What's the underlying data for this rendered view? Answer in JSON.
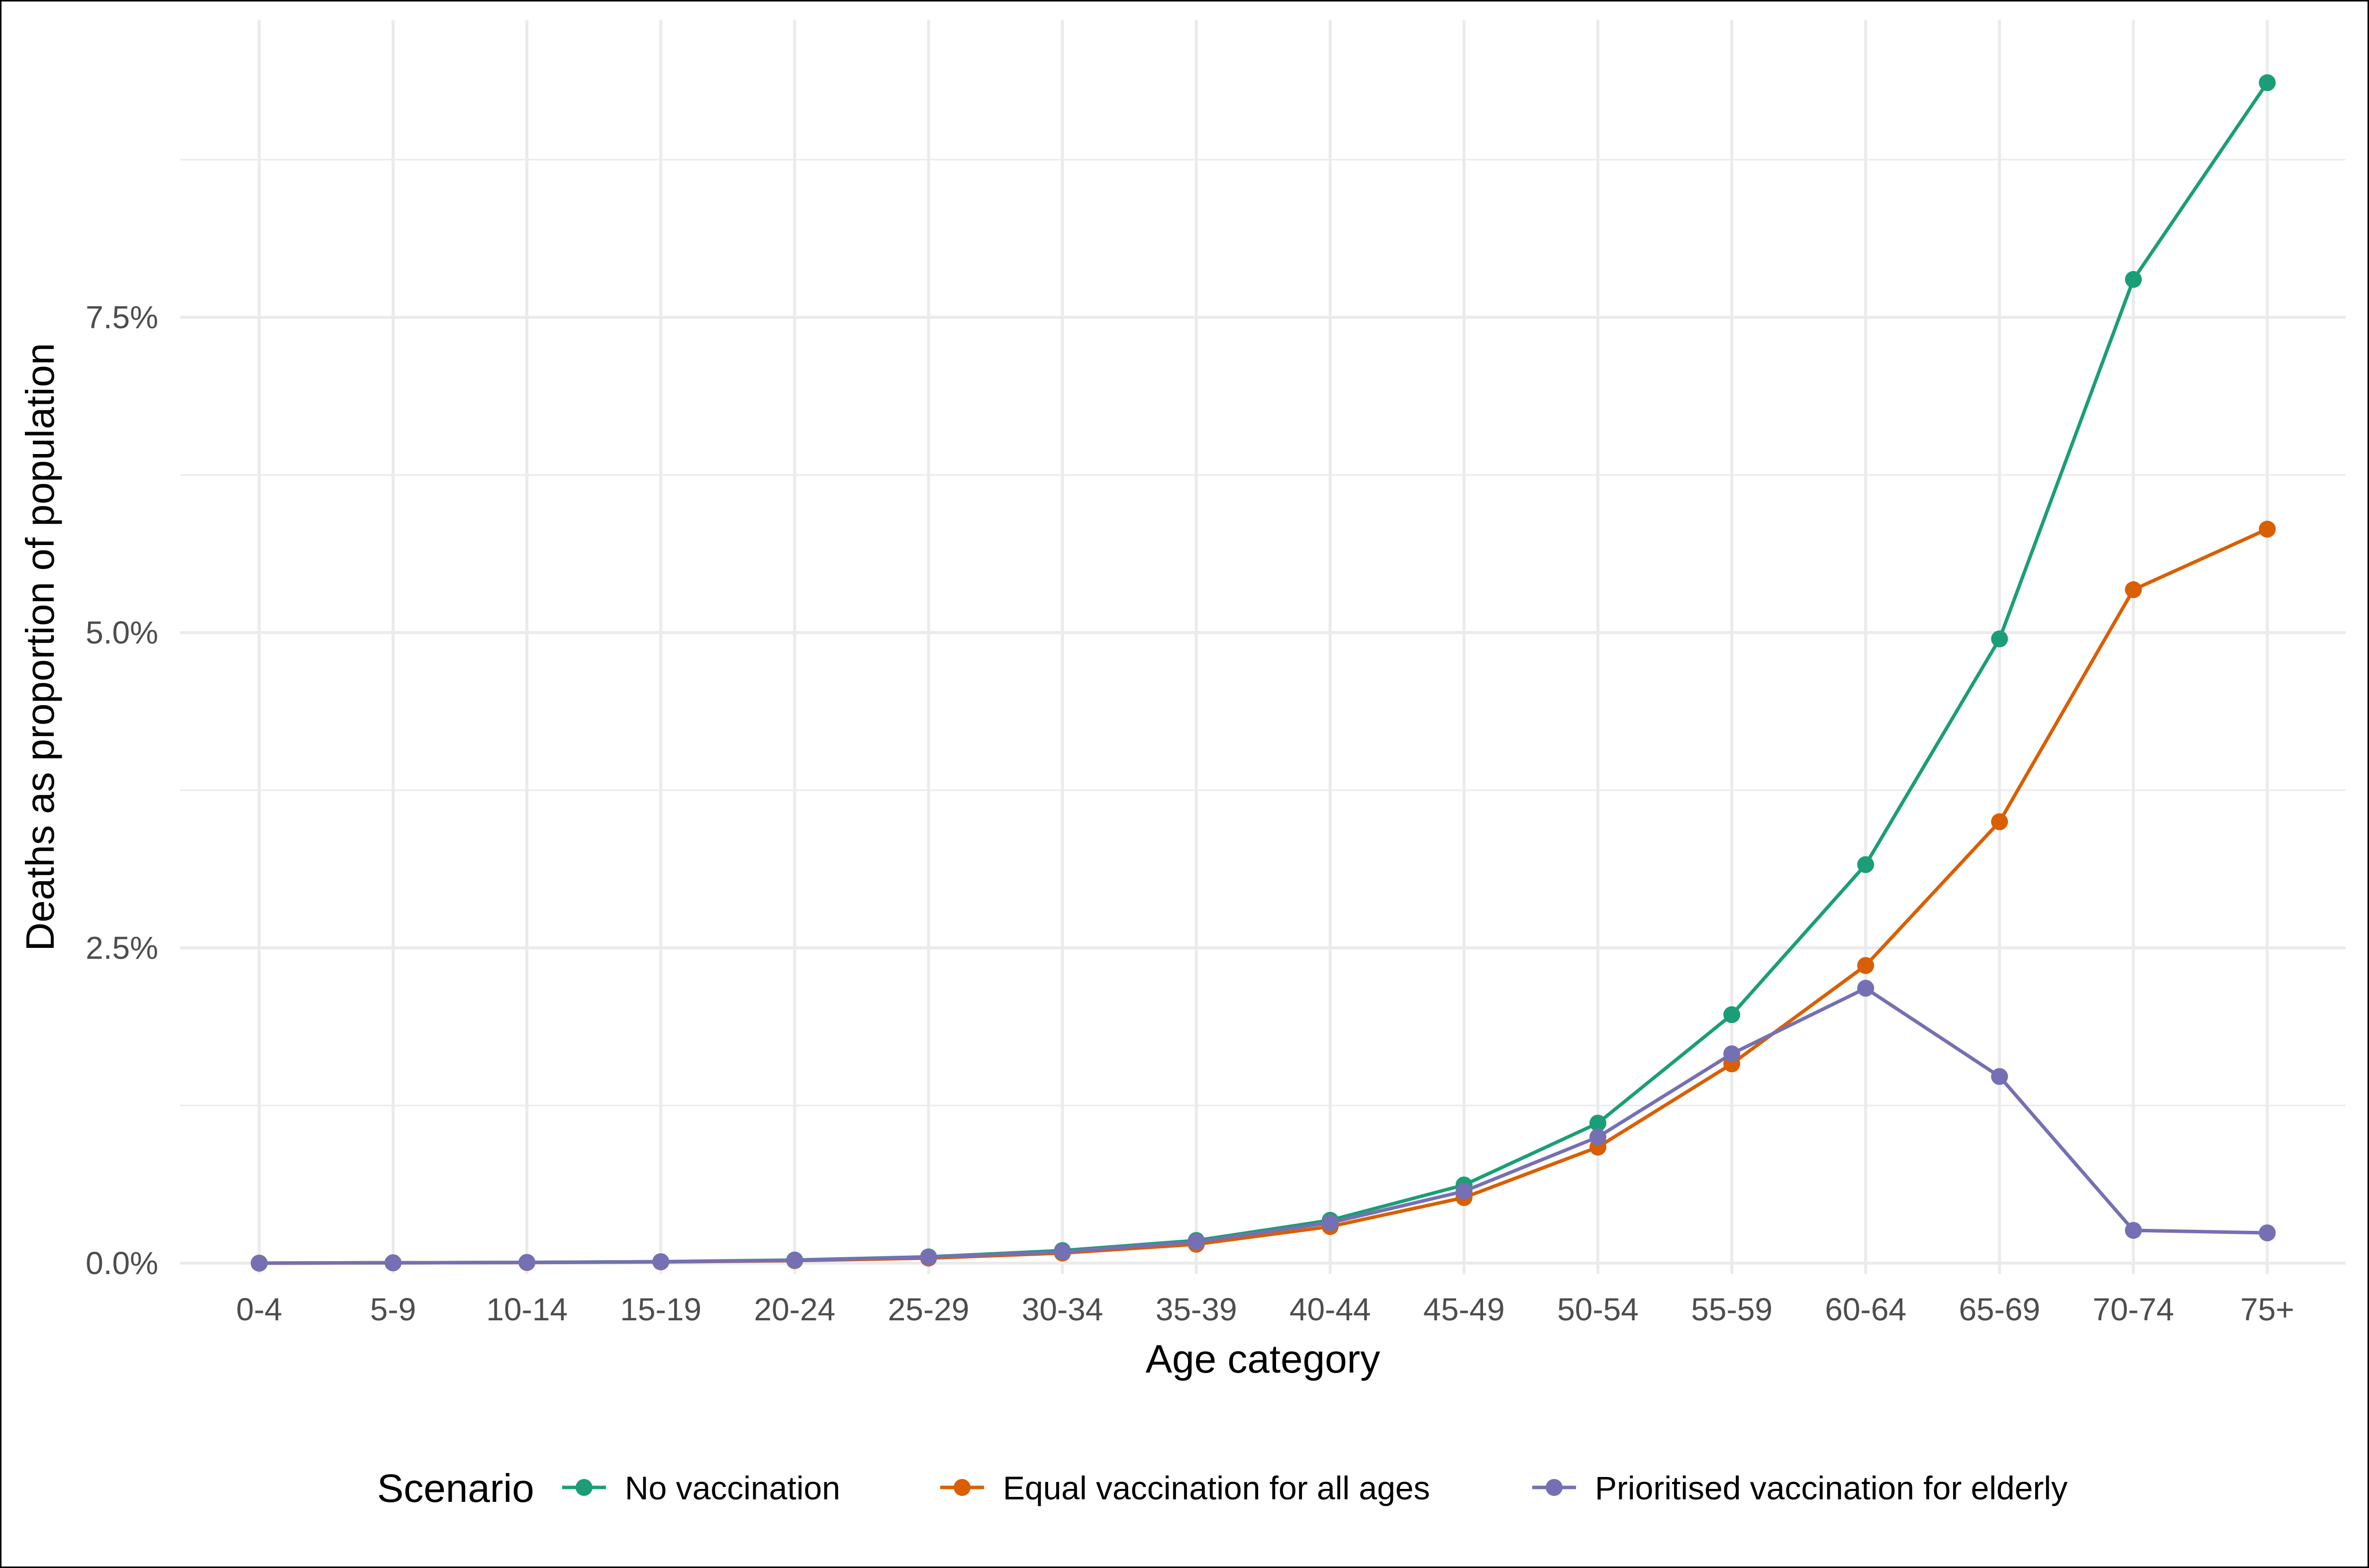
{
  "chart_data": {
    "type": "line",
    "xlabel": "Age category",
    "ylabel": "Deaths as proportion of population",
    "categories": [
      "0-4",
      "5-9",
      "10-14",
      "15-19",
      "20-24",
      "25-29",
      "30-34",
      "35-39",
      "40-44",
      "45-49",
      "50-54",
      "55-59",
      "60-64",
      "65-69",
      "70-74",
      "75+"
    ],
    "y_ticks": [
      "0.0%",
      "2.5%",
      "5.0%",
      "7.5%"
    ],
    "y_tick_values": [
      0,
      2.5,
      5.0,
      7.5
    ],
    "ylim": [
      0,
      9.8
    ],
    "y_unit": "percent",
    "grid": true,
    "legend": {
      "title": "Scenario",
      "position": "bottom"
    },
    "series": [
      {
        "name": "No vaccination",
        "color": "#1b9e77",
        "values": [
          0.0,
          0.003,
          0.006,
          0.012,
          0.025,
          0.05,
          0.1,
          0.18,
          0.34,
          0.62,
          1.11,
          1.97,
          3.16,
          4.95,
          7.8,
          9.36
        ]
      },
      {
        "name": "Equal vaccination for all ages",
        "color": "#d95f02",
        "values": [
          0.0,
          0.003,
          0.005,
          0.01,
          0.02,
          0.04,
          0.08,
          0.15,
          0.29,
          0.52,
          0.92,
          1.58,
          2.36,
          3.5,
          5.34,
          5.82
        ]
      },
      {
        "name": "Prioritised vaccination for elderly",
        "color": "#7570b3",
        "values": [
          0.0,
          0.003,
          0.006,
          0.011,
          0.023,
          0.048,
          0.09,
          0.17,
          0.32,
          0.57,
          1.0,
          1.66,
          2.18,
          1.48,
          0.26,
          0.24
        ]
      }
    ]
  }
}
